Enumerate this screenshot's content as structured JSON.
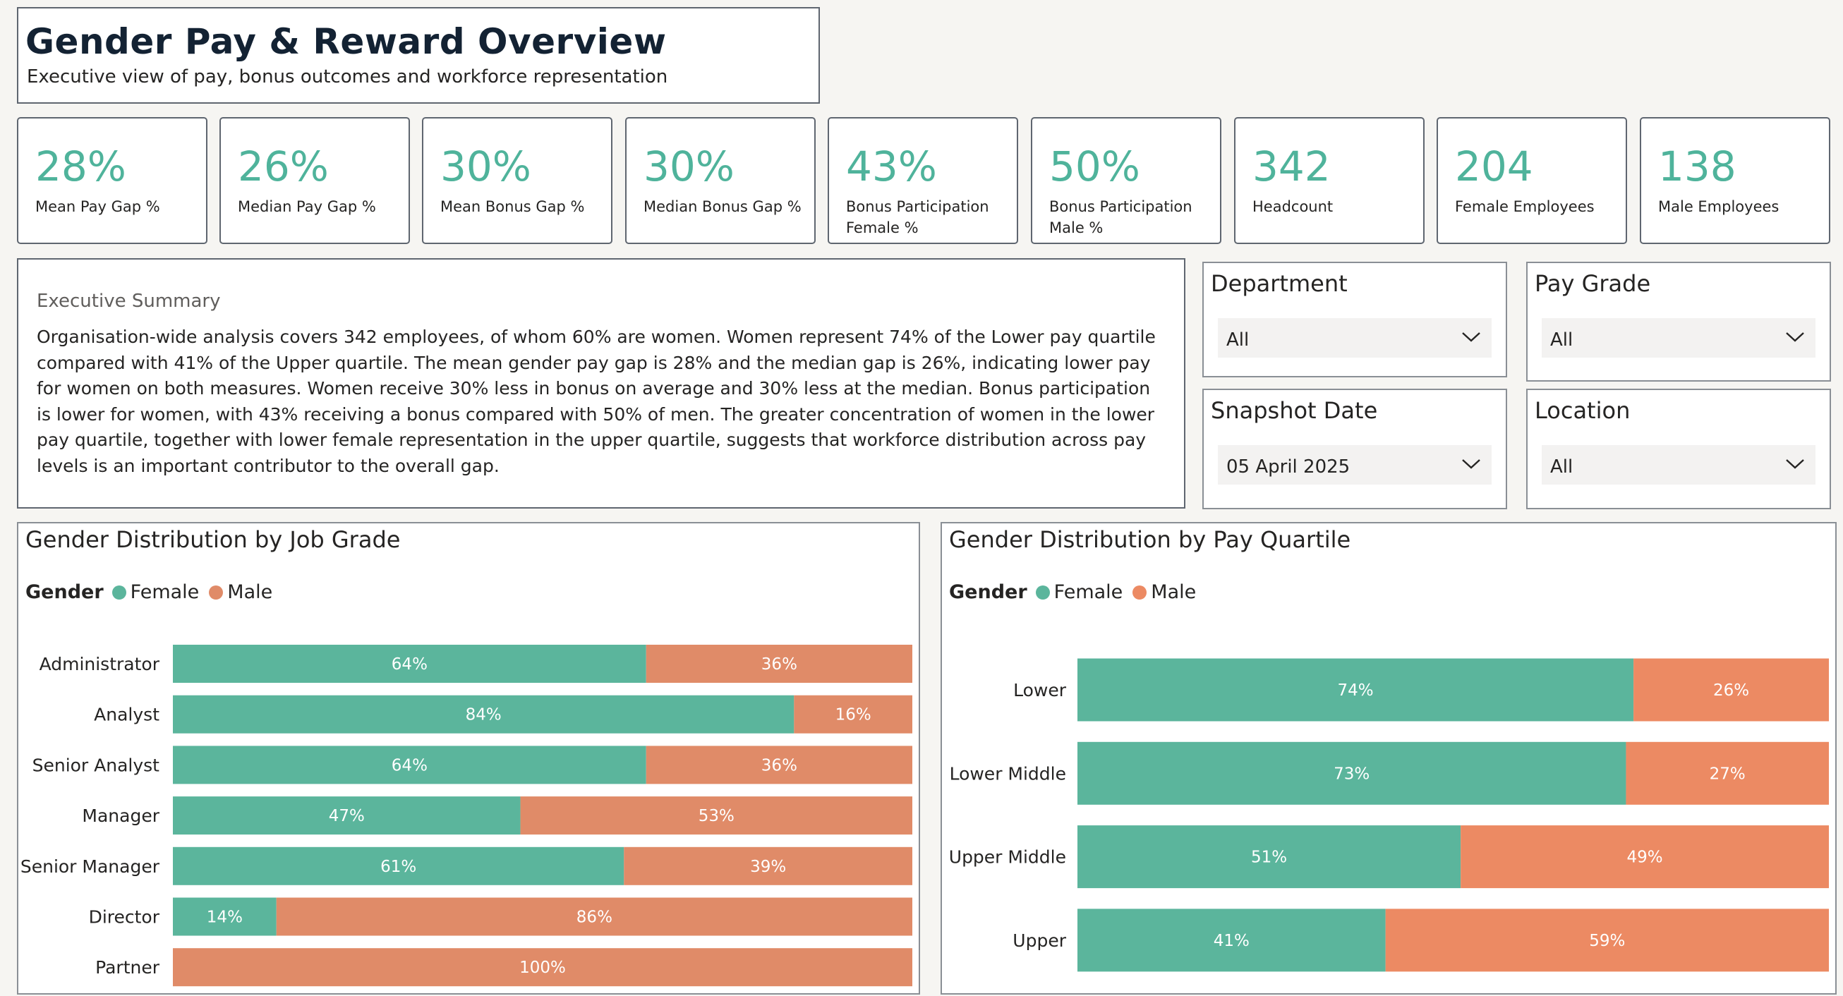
{
  "header": {
    "title": "Gender Pay & Reward Overview",
    "subtitle": "Executive view of pay, bonus outcomes and workforce representation"
  },
  "kpis": [
    {
      "value": "28%",
      "label": "Mean Pay Gap %"
    },
    {
      "value": "26%",
      "label": "Median Pay Gap %"
    },
    {
      "value": "30%",
      "label": "Mean Bonus Gap %"
    },
    {
      "value": "30%",
      "label": "Median Bonus Gap %"
    },
    {
      "value": "43%",
      "label": "Bonus Participation Female %"
    },
    {
      "value": "50%",
      "label": "Bonus Participation Male %"
    },
    {
      "value": "342",
      "label": "Headcount"
    },
    {
      "value": "204",
      "label": "Female Employees"
    },
    {
      "value": "138",
      "label": "Male Employees"
    }
  ],
  "summary": {
    "heading": "Executive Summary",
    "text": "Organisation-wide analysis covers 342 employees, of whom 60% are women. Women represent 74% of the Lower pay quartile compared with 41% of the Upper quartile. The mean gender pay gap is 28% and the median gap is 26%, indicating lower pay for women on both measures. Women receive 30% less in bonus on average and 30% less at the median. Bonus participation is lower for women, with 43% receiving a bonus compared with 50% of men. The greater concentration of women in the lower pay quartile, together with lower female representation in the upper quartile, suggests that workforce distribution across pay levels is an important contributor to the overall gap."
  },
  "slicers": {
    "department": {
      "label": "Department",
      "value": "All"
    },
    "pay_grade": {
      "label": "Pay Grade",
      "value": "All"
    },
    "snapshot_date": {
      "label": "Snapshot Date",
      "value": "05 April 2025"
    },
    "location": {
      "label": "Location",
      "value": "All"
    }
  },
  "legend": {
    "title": "Gender",
    "female": "Female",
    "male": "Male"
  },
  "colors": {
    "female": "#5bb59c",
    "male_grade": "#e08b68",
    "male_quartile": "#ec8a63",
    "kpi_value": "#4fb39b"
  },
  "chart_data": [
    {
      "type": "bar",
      "stacked": "100%",
      "orientation": "horizontal",
      "title": "Gender Distribution by Job Grade",
      "categories": [
        "Administrator",
        "Analyst",
        "Senior Analyst",
        "Manager",
        "Senior Manager",
        "Director",
        "Partner"
      ],
      "series": [
        {
          "name": "Female",
          "values": [
            64,
            84,
            64,
            47,
            61,
            14,
            0
          ]
        },
        {
          "name": "Male",
          "values": [
            36,
            16,
            36,
            53,
            39,
            86,
            100
          ]
        }
      ],
      "legend_title": "Gender",
      "legend_position": "top-left"
    },
    {
      "type": "bar",
      "stacked": "100%",
      "orientation": "horizontal",
      "title": "Gender Distribution by Pay Quartile",
      "categories": [
        "Lower",
        "Lower Middle",
        "Upper Middle",
        "Upper"
      ],
      "series": [
        {
          "name": "Female",
          "values": [
            74,
            73,
            51,
            41
          ]
        },
        {
          "name": "Male",
          "values": [
            26,
            27,
            49,
            59
          ]
        }
      ],
      "legend_title": "Gender",
      "legend_position": "top-left"
    }
  ]
}
